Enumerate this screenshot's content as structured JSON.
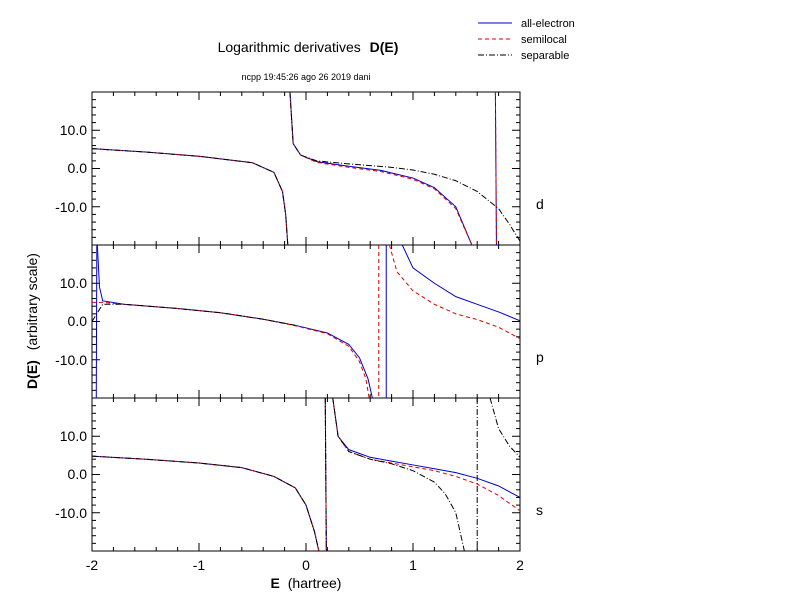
{
  "chart_data": {
    "type": "line",
    "title_prefix": "Logarithmic derivatives",
    "title_bold": "D(E)",
    "subtitle": "ncpp 19:45:26 ago 26 2019 dani",
    "xlabel_bold": "E",
    "xlabel_rest": "(hartree)",
    "ylabel_bold": "D(E)",
    "ylabel_rest": "(arbitrary scale)",
    "xlim": [
      -2,
      2
    ],
    "ylim": [
      -20,
      20
    ],
    "x_ticks": [
      "-2",
      "-1",
      "0",
      "1",
      "2"
    ],
    "y_ticks": [
      "10.0",
      "0.0",
      "-10.0"
    ],
    "legend_position": "top-right",
    "legend": [
      {
        "name": "all-electron",
        "color": "#0000cc",
        "dash": "solid"
      },
      {
        "name": "semilocal",
        "color": "#dd0000",
        "dash": "dashed"
      },
      {
        "name": "separable",
        "color": "#000000",
        "dash": "dashdot"
      }
    ],
    "panels": [
      {
        "label": "d",
        "series": [
          {
            "name": "all-electron",
            "branches": [
              [
                [
                  -2.0,
                  5.2
                ],
                [
                  -1.5,
                  4.3
                ],
                [
                  -1.0,
                  3.2
                ],
                [
                  -0.5,
                  1.5
                ],
                [
                  -0.3,
                  -1.0
                ],
                [
                  -0.22,
                  -6.0
                ],
                [
                  -0.19,
                  -12.0
                ],
                [
                  -0.17,
                  -20.0
                ]
              ],
              [
                [
                  -0.15,
                  20.0
                ],
                [
                  -0.12,
                  6.5
                ],
                [
                  -0.05,
                  3.5
                ],
                [
                  0.1,
                  1.8
                ],
                [
                  0.4,
                  0.6
                ],
                [
                  0.7,
                  -0.5
                ],
                [
                  1.0,
                  -2.5
                ],
                [
                  1.2,
                  -5.0
                ],
                [
                  1.4,
                  -10.0
                ],
                [
                  1.55,
                  -20.0
                ]
              ],
              [
                [
                  1.77,
                  20.0
                ],
                [
                  1.78,
                  -20.0
                ]
              ]
            ]
          },
          {
            "name": "semilocal",
            "branches": [
              [
                [
                  -2.0,
                  5.2
                ],
                [
                  -1.5,
                  4.3
                ],
                [
                  -1.0,
                  3.2
                ],
                [
                  -0.5,
                  1.5
                ],
                [
                  -0.3,
                  -1.0
                ],
                [
                  -0.22,
                  -6.0
                ],
                [
                  -0.19,
                  -12.0
                ],
                [
                  -0.17,
                  -20.0
                ]
              ],
              [
                [
                  -0.15,
                  20.0
                ],
                [
                  -0.12,
                  6.5
                ],
                [
                  -0.05,
                  3.5
                ],
                [
                  0.1,
                  1.6
                ],
                [
                  0.4,
                  0.3
                ],
                [
                  0.7,
                  -0.8
                ],
                [
                  1.0,
                  -2.8
                ],
                [
                  1.2,
                  -5.3
                ],
                [
                  1.4,
                  -10.5
                ],
                [
                  1.55,
                  -20.0
                ]
              ],
              [
                [
                  1.77,
                  20.0
                ],
                [
                  1.78,
                  -20.0
                ]
              ]
            ]
          },
          {
            "name": "separable",
            "branches": [
              [
                [
                  -2.0,
                  5.2
                ],
                [
                  -1.5,
                  4.3
                ],
                [
                  -1.0,
                  3.2
                ],
                [
                  -0.5,
                  1.5
                ],
                [
                  -0.3,
                  -1.0
                ],
                [
                  -0.22,
                  -6.0
                ],
                [
                  -0.19,
                  -12.0
                ],
                [
                  -0.17,
                  -20.0
                ]
              ],
              [
                [
                  -0.15,
                  20.0
                ],
                [
                  -0.12,
                  6.5
                ],
                [
                  -0.05,
                  3.5
                ],
                [
                  0.1,
                  2.0
                ],
                [
                  0.4,
                  1.2
                ],
                [
                  0.8,
                  0.3
                ],
                [
                  1.0,
                  -0.4
                ],
                [
                  1.2,
                  -1.5
                ],
                [
                  1.4,
                  -3.2
                ],
                [
                  1.6,
                  -6.0
                ],
                [
                  1.8,
                  -10.5
                ],
                [
                  1.9,
                  -14.5
                ],
                [
                  2.0,
                  -19.0
                ]
              ]
            ]
          }
        ]
      },
      {
        "label": "p",
        "series": [
          {
            "name": "all-electron",
            "branches": [
              [
                [
                  -1.96,
                  -20.0
                ],
                [
                  -1.955,
                  20.0
                ]
              ],
              [
                [
                  -1.95,
                  20.0
                ],
                [
                  -1.93,
                  9.0
                ],
                [
                  -1.9,
                  5.4
                ],
                [
                  -1.7,
                  4.5
                ],
                [
                  -1.2,
                  3.4
                ],
                [
                  -0.8,
                  2.3
                ],
                [
                  -0.4,
                  0.6
                ],
                [
                  -0.1,
                  -1.0
                ],
                [
                  0.2,
                  -3.0
                ],
                [
                  0.4,
                  -6.0
                ],
                [
                  0.5,
                  -9.5
                ],
                [
                  0.58,
                  -15.0
                ],
                [
                  0.62,
                  -20.0
                ]
              ],
              [
                [
                  0.75,
                  20.0
                ],
                [
                  0.75,
                  -20.0
                ]
              ],
              [
                [
                  0.9,
                  20.0
                ],
                [
                  1.0,
                  14.0
                ],
                [
                  1.2,
                  10.0
                ],
                [
                  1.4,
                  6.5
                ],
                [
                  1.6,
                  4.5
                ],
                [
                  1.8,
                  2.5
                ],
                [
                  2.0,
                  0.2
                ]
              ]
            ]
          },
          {
            "name": "semilocal",
            "branches": [
              [
                [
                  -2.0,
                  5.0
                ],
                [
                  -1.9,
                  5.0
                ],
                [
                  -1.7,
                  4.5
                ],
                [
                  -1.2,
                  3.4
                ],
                [
                  -0.8,
                  2.3
                ],
                [
                  -0.4,
                  0.6
                ],
                [
                  -0.1,
                  -1.1
                ],
                [
                  0.2,
                  -3.2
                ],
                [
                  0.4,
                  -6.5
                ],
                [
                  0.5,
                  -10.5
                ],
                [
                  0.56,
                  -15.0
                ],
                [
                  0.59,
                  -20.0
                ]
              ],
              [
                [
                  0.68,
                  20.0
                ],
                [
                  0.68,
                  -20.0
                ]
              ],
              [
                [
                  0.78,
                  20.0
                ],
                [
                  0.85,
                  13.0
                ],
                [
                  1.0,
                  8.0
                ],
                [
                  1.2,
                  4.5
                ],
                [
                  1.4,
                  2.0
                ],
                [
                  1.6,
                  0.5
                ],
                [
                  1.8,
                  -1.5
                ],
                [
                  2.0,
                  -4.5
                ]
              ]
            ]
          },
          {
            "name": "separable",
            "branches": [
              [
                [
                  -2.0,
                  0.0
                ],
                [
                  -1.9,
                  4.5
                ],
                [
                  -1.7,
                  4.5
                ],
                [
                  -1.2,
                  3.4
                ],
                [
                  -0.8,
                  2.3
                ],
                [
                  -0.4,
                  0.6
                ],
                [
                  -0.1,
                  -1.0
                ]
              ]
            ]
          }
        ]
      },
      {
        "label": "s",
        "series": [
          {
            "name": "all-electron",
            "branches": [
              [
                [
                  -2.0,
                  4.8
                ],
                [
                  -1.5,
                  4.0
                ],
                [
                  -1.0,
                  3.0
                ],
                [
                  -0.6,
                  1.8
                ],
                [
                  -0.3,
                  -0.5
                ],
                [
                  -0.1,
                  -3.5
                ],
                [
                  0.0,
                  -8.0
                ],
                [
                  0.08,
                  -15.0
                ],
                [
                  0.12,
                  -20.0
                ]
              ],
              [
                [
                  0.18,
                  20.0
                ],
                [
                  0.19,
                  -20.0
                ]
              ],
              [
                [
                  0.25,
                  20.0
                ],
                [
                  0.3,
                  10.0
                ],
                [
                  0.4,
                  6.5
                ],
                [
                  0.6,
                  4.5
                ],
                [
                  0.8,
                  3.5
                ],
                [
                  1.0,
                  2.5
                ],
                [
                  1.2,
                  1.5
                ],
                [
                  1.4,
                  0.5
                ],
                [
                  1.6,
                  -1.0
                ],
                [
                  1.8,
                  -3.0
                ],
                [
                  2.0,
                  -6.0
                ]
              ]
            ]
          },
          {
            "name": "semilocal",
            "branches": [
              [
                [
                  -2.0,
                  4.8
                ],
                [
                  -1.5,
                  4.0
                ],
                [
                  -1.0,
                  3.0
                ],
                [
                  -0.6,
                  1.8
                ],
                [
                  -0.3,
                  -0.5
                ],
                [
                  -0.1,
                  -3.5
                ],
                [
                  0.0,
                  -8.0
                ],
                [
                  0.08,
                  -15.0
                ],
                [
                  0.12,
                  -20.0
                ]
              ],
              [
                [
                  0.18,
                  20.0
                ],
                [
                  0.19,
                  -20.0
                ]
              ],
              [
                [
                  0.25,
                  20.0
                ],
                [
                  0.3,
                  10.0
                ],
                [
                  0.4,
                  6.0
                ],
                [
                  0.6,
                  4.0
                ],
                [
                  0.8,
                  3.0
                ],
                [
                  1.0,
                  2.0
                ],
                [
                  1.2,
                  1.0
                ],
                [
                  1.4,
                  -0.5
                ],
                [
                  1.6,
                  -2.5
                ],
                [
                  1.8,
                  -5.5
                ],
                [
                  2.0,
                  -9.5
                ]
              ]
            ]
          },
          {
            "name": "separable",
            "branches": [
              [
                [
                  -2.0,
                  4.8
                ],
                [
                  -1.5,
                  4.0
                ],
                [
                  -1.0,
                  3.0
                ],
                [
                  -0.6,
                  1.8
                ],
                [
                  -0.3,
                  -0.5
                ],
                [
                  -0.1,
                  -3.5
                ],
                [
                  0.0,
                  -8.0
                ],
                [
                  0.08,
                  -15.0
                ],
                [
                  0.12,
                  -20.0
                ]
              ],
              [
                [
                  0.18,
                  20.0
                ],
                [
                  0.19,
                  -20.0
                ]
              ],
              [
                [
                  0.25,
                  20.0
                ],
                [
                  0.3,
                  10.0
                ],
                [
                  0.4,
                  6.0
                ],
                [
                  0.6,
                  4.0
                ],
                [
                  0.8,
                  2.8
                ],
                [
                  1.0,
                  1.0
                ],
                [
                  1.2,
                  -2.0
                ],
                [
                  1.3,
                  -5.0
                ],
                [
                  1.4,
                  -10.0
                ],
                [
                  1.48,
                  -20.0
                ]
              ],
              [
                [
                  1.6,
                  20.0
                ],
                [
                  1.6,
                  -20.0
                ]
              ],
              [
                [
                  1.72,
                  20.0
                ],
                [
                  1.8,
                  12.0
                ],
                [
                  1.9,
                  7.5
                ],
                [
                  2.0,
                  4.5
                ]
              ]
            ]
          }
        ]
      }
    ]
  }
}
